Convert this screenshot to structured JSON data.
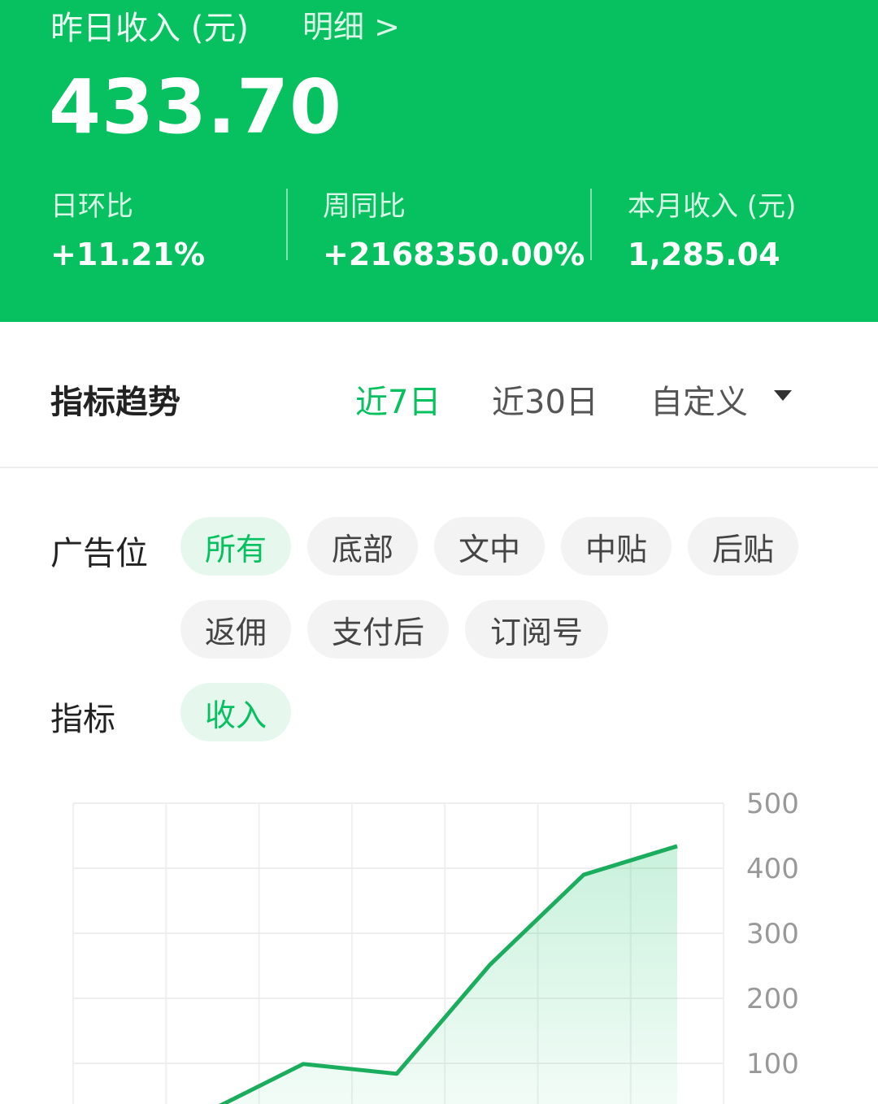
{
  "header": {
    "title": "昨日收入 (元)",
    "detail_link": "明细 >",
    "amount": "433.70",
    "stats": [
      {
        "label": "日环比",
        "value": "+11.21%"
      },
      {
        "label": "周同比",
        "value": "+2168350.00%"
      },
      {
        "label": "本月收入 (元)",
        "value": "1,285.04"
      }
    ],
    "color": "#07c160"
  },
  "trend": {
    "title": "指标趋势",
    "ranges": [
      "近7日",
      "近30日",
      "自定义"
    ],
    "active_range": "近7日"
  },
  "filters": {
    "ad_label": "广告位",
    "ad_options": [
      "所有",
      "底部",
      "文中",
      "中贴",
      "后贴",
      "返佣",
      "支付后",
      "订阅号"
    ],
    "active_ad": "所有",
    "metric_label": "指标",
    "metric_options": [
      "收入"
    ],
    "active_metric": "收入"
  },
  "chart_data": {
    "type": "area",
    "y_ticks": [
      "500",
      "400",
      "300",
      "200",
      "100"
    ],
    "ylim": [
      0,
      500
    ],
    "values": [
      null,
      27,
      99,
      84,
      252,
      390,
      434
    ],
    "grid": true,
    "color": "#1aad5e"
  }
}
